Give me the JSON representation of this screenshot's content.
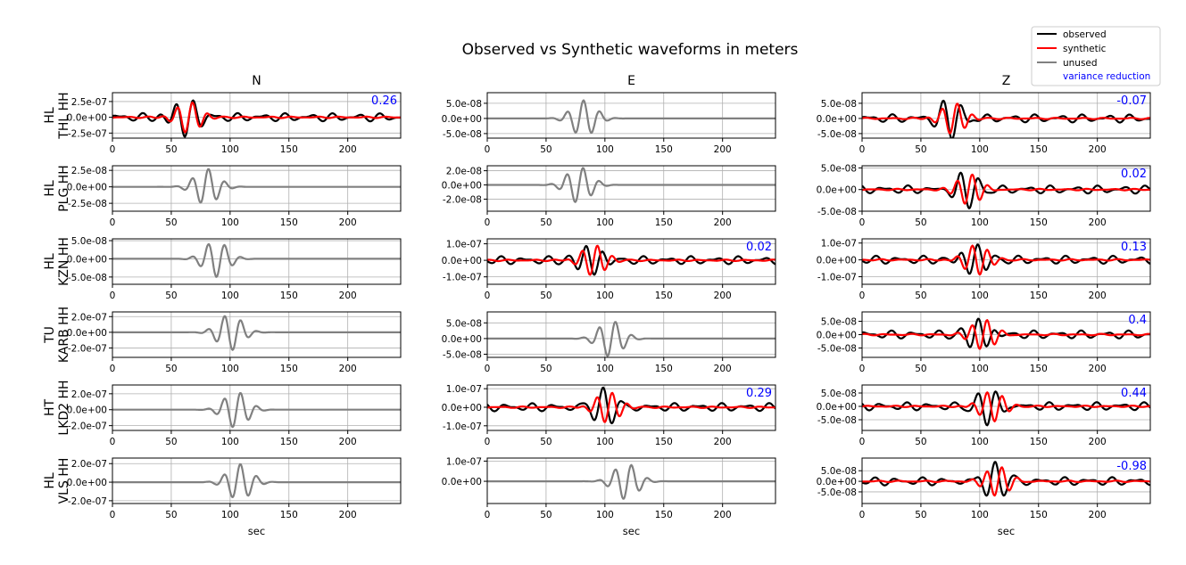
{
  "figure": {
    "title": "Observed vs Synthetic waveforms in meters",
    "xlabel": "sec",
    "legend": {
      "placement": "top-right",
      "entries": [
        {
          "label": "observed",
          "color": "#000000",
          "kind": "line"
        },
        {
          "label": "synthetic",
          "color": "#ff0000",
          "kind": "line"
        },
        {
          "label": "unused",
          "color": "#808080",
          "kind": "line"
        },
        {
          "label": "variance reduction",
          "color": "#0000ff",
          "kind": "text"
        }
      ]
    }
  },
  "chart_data": {
    "type": "line",
    "grid": true,
    "columns": [
      "N",
      "E",
      "Z"
    ],
    "xlim": [
      0,
      245
    ],
    "xticks": [
      0,
      50,
      100,
      150,
      200
    ],
    "xtick_labels": [
      "0",
      "50",
      "100",
      "150",
      "200"
    ],
    "stations": [
      {
        "label": "HL\nTHL HH",
        "panels": [
          {
            "used": true,
            "vr": "0.26",
            "ylim": [
              -3.3e-07,
              3.9e-07
            ],
            "yticks": [
              2.5e-07,
              0,
              -2.5e-07
            ],
            "ytick_labels": [
              "2.5e-07",
              "0.0e+00",
              "-2.5e-07"
            ]
          },
          {
            "used": false,
            "vr": "",
            "ylim": [
              -6.5e-08,
              8.5e-08
            ],
            "yticks": [
              5e-08,
              0,
              -5e-08
            ],
            "ytick_labels": [
              "5.0e-08",
              "0.0e+00",
              "-5.0e-08"
            ]
          },
          {
            "used": true,
            "vr": "-0.07",
            "ylim": [
              -6.5e-08,
              8.5e-08
            ],
            "yticks": [
              5e-08,
              0,
              -5e-08
            ],
            "ytick_labels": [
              "5.0e-08",
              "0.0e+00",
              "-5.0e-08"
            ]
          }
        ]
      },
      {
        "label": "HL\nPLG HH",
        "panels": [
          {
            "used": false,
            "vr": "",
            "ylim": [
              -3.7e-08,
              3.2e-08
            ],
            "yticks": [
              2.5e-08,
              0,
              -2.5e-08
            ],
            "ytick_labels": [
              "2.5e-08",
              "0.0e+00",
              "-2.5e-08"
            ]
          },
          {
            "used": false,
            "vr": "",
            "ylim": [
              -3.7e-08,
              2.7e-08
            ],
            "yticks": [
              2e-08,
              0,
              -2e-08
            ],
            "ytick_labels": [
              "2.0e-08",
              "0.0e+00",
              "-2.0e-08"
            ]
          },
          {
            "used": true,
            "vr": "0.02",
            "ylim": [
              -5e-08,
              5.5e-08
            ],
            "yticks": [
              5e-08,
              0,
              -5e-08
            ],
            "ytick_labels": [
              "5.0e-08",
              "0.0e+00",
              "-5.0e-08"
            ]
          }
        ]
      },
      {
        "label": "HL\nKZN HH",
        "panels": [
          {
            "used": false,
            "vr": "",
            "ylim": [
              -7e-08,
              5.5e-08
            ],
            "yticks": [
              5e-08,
              0,
              -5e-08
            ],
            "ytick_labels": [
              "5.0e-08",
              "0.0e+00",
              "-5.0e-08"
            ]
          },
          {
            "used": true,
            "vr": "0.02",
            "ylim": [
              -1.45e-07,
              1.3e-07
            ],
            "yticks": [
              1e-07,
              0,
              -1e-07
            ],
            "ytick_labels": [
              "1.0e-07",
              "0.0e+00",
              "-1.0e-07"
            ]
          },
          {
            "used": true,
            "vr": "0.13",
            "ylim": [
              -1.45e-07,
              1.25e-07
            ],
            "yticks": [
              1e-07,
              0,
              -1e-07
            ],
            "ytick_labels": [
              "1.0e-07",
              "0.0e+00",
              "-1.0e-07"
            ]
          }
        ]
      },
      {
        "label": "TU\nKARB HH",
        "panels": [
          {
            "used": false,
            "vr": "",
            "ylim": [
              -3.2e-07,
              2.6e-07
            ],
            "yticks": [
              2e-07,
              0,
              -2e-07
            ],
            "ytick_labels": [
              "2.0e-07",
              "0.0e+00",
              "-2.0e-07"
            ]
          },
          {
            "used": false,
            "vr": "",
            "ylim": [
              -6e-08,
              8.5e-08
            ],
            "yticks": [
              5e-08,
              0,
              -5e-08
            ],
            "ytick_labels": [
              "5.0e-08",
              "0.0e+00",
              "-5.0e-08"
            ]
          },
          {
            "used": true,
            "vr": "0.4",
            "ylim": [
              -8.5e-08,
              8.5e-08
            ],
            "yticks": [
              5e-08,
              0,
              -5e-08
            ],
            "ytick_labels": [
              "5.0e-08",
              "0.0e+00",
              "-5.0e-08"
            ]
          }
        ]
      },
      {
        "label": "HT\nLKD2 HH",
        "panels": [
          {
            "used": false,
            "vr": "",
            "ylim": [
              -2.6e-07,
              3.1e-07
            ],
            "yticks": [
              2e-07,
              0,
              -2e-07
            ],
            "ytick_labels": [
              "2.0e-07",
              "0.0e+00",
              "-2.0e-07"
            ]
          },
          {
            "used": true,
            "vr": "0.29",
            "ylim": [
              -1.25e-07,
              1.2e-07
            ],
            "yticks": [
              1e-07,
              0,
              -1e-07
            ],
            "ytick_labels": [
              "1.0e-07",
              "0.0e+00",
              "-1.0e-07"
            ]
          },
          {
            "used": true,
            "vr": "0.44",
            "ylim": [
              -9e-08,
              8e-08
            ],
            "yticks": [
              5e-08,
              0,
              -5e-08
            ],
            "ytick_labels": [
              "5.0e-08",
              "0.0e+00",
              "-5.0e-08"
            ]
          }
        ]
      },
      {
        "label": "HL\nVLS HH",
        "panels": [
          {
            "used": false,
            "vr": "",
            "ylim": [
              -2.3e-07,
              2.6e-07
            ],
            "yticks": [
              2e-07,
              0,
              -2e-07
            ],
            "ytick_labels": [
              "2.0e-07",
              "0.0e+00",
              "-2.0e-07"
            ]
          },
          {
            "used": false,
            "vr": "",
            "ylim": [
              -1.1e-07,
              1.15e-07
            ],
            "yticks": [
              1e-07,
              0
            ],
            "ytick_labels": [
              "1.0e-07",
              "0.0e+00"
            ]
          },
          {
            "used": true,
            "vr": "-0.98",
            "ylim": [
              -1.05e-07,
              1.1e-07
            ],
            "yticks": [
              5e-08,
              0,
              -5e-08
            ],
            "ytick_labels": [
              "5.0e-08",
              "0.0e+00",
              "-5.0e-08"
            ]
          }
        ]
      }
    ]
  }
}
